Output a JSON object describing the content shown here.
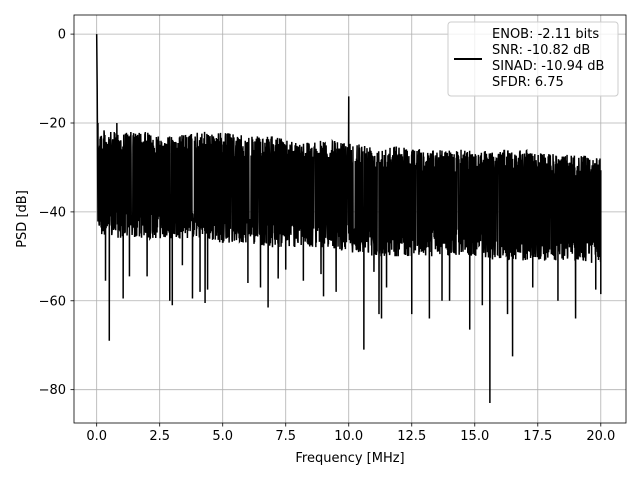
{
  "chart_data": {
    "type": "line",
    "title": "",
    "xlabel": "Frequency [MHz]",
    "ylabel": "PSD [dB]",
    "xlim": [
      -0.9,
      21.0
    ],
    "ylim": [
      -87.5,
      4.3
    ],
    "grid": true,
    "legend_position": "top-right",
    "x_ticks": [
      0.0,
      2.5,
      5.0,
      7.5,
      10.0,
      12.5,
      15.0,
      17.5,
      20.0
    ],
    "x_tick_labels": [
      "0.0",
      "2.5",
      "5.0",
      "7.5",
      "10.0",
      "12.5",
      "15.0",
      "17.5",
      "20.0"
    ],
    "y_ticks": [
      0,
      -20,
      -40,
      -60,
      -80
    ],
    "y_tick_labels": [
      "0",
      "−20",
      "−40",
      "−60",
      "−80"
    ],
    "legend": {
      "entries": [
        "ENOB: -2.11 bits",
        "SNR: -10.82 dB",
        "SINAD: -10.94 dB",
        "SFDR: 6.75"
      ]
    },
    "series": [
      {
        "color": "#000000",
        "envelope_x": [
          0.05,
          0.5,
          1.0,
          2.0,
          3.0,
          4.0,
          5.0,
          6.0,
          7.0,
          8.0,
          9.0,
          10.0,
          11.0,
          12.0,
          13.0,
          14.0,
          15.0,
          16.0,
          17.0,
          18.0,
          19.0,
          20.0
        ],
        "envelope_upper": [
          -21,
          -22,
          -22,
          -22,
          -23,
          -22,
          -22,
          -23,
          -23,
          -24,
          -24,
          -24,
          -25,
          -25,
          -26,
          -26,
          -26,
          -26,
          -26,
          -27,
          -27,
          -28
        ],
        "envelope_lower": [
          -44,
          -46,
          -46,
          -46,
          -46,
          -46,
          -47,
          -47,
          -48,
          -48,
          -48,
          -49,
          -50,
          -50,
          -50,
          -50,
          -50,
          -51,
          -51,
          -51,
          -51,
          -52
        ],
        "points": [
          [
            0.0,
            0.0
          ],
          [
            0.02,
            -12.0
          ],
          [
            0.05,
            -20.0
          ],
          [
            0.2,
            -45.0
          ],
          [
            0.35,
            -55.5
          ],
          [
            0.5,
            -69.0
          ],
          [
            0.8,
            -20.0
          ],
          [
            1.05,
            -59.5
          ],
          [
            1.3,
            -54.5
          ],
          [
            2.0,
            -54.5
          ],
          [
            2.9,
            -60.0
          ],
          [
            3.0,
            -61.0
          ],
          [
            3.4,
            -52.0
          ],
          [
            3.8,
            -59.5
          ],
          [
            4.1,
            -58.0
          ],
          [
            4.3,
            -60.5
          ],
          [
            4.4,
            -57.5
          ],
          [
            6.0,
            -56.0
          ],
          [
            6.5,
            -57.0
          ],
          [
            6.8,
            -61.5
          ],
          [
            7.2,
            -55.0
          ],
          [
            7.5,
            -53.0
          ],
          [
            8.2,
            -55.5
          ],
          [
            8.9,
            -54.0
          ],
          [
            9.0,
            -59.0
          ],
          [
            9.5,
            -58.0
          ],
          [
            10.0,
            -14.0
          ],
          [
            10.6,
            -71.0
          ],
          [
            11.0,
            -53.5
          ],
          [
            11.2,
            -63.0
          ],
          [
            11.3,
            -64.0
          ],
          [
            11.5,
            -57.0
          ],
          [
            12.5,
            -63.0
          ],
          [
            13.2,
            -64.0
          ],
          [
            13.7,
            -60.0
          ],
          [
            14.0,
            -60.0
          ],
          [
            14.8,
            -66.5
          ],
          [
            15.3,
            -61.0
          ],
          [
            15.6,
            -83.0
          ],
          [
            16.3,
            -63.0
          ],
          [
            16.5,
            -72.5
          ],
          [
            17.3,
            -57.0
          ],
          [
            18.3,
            -60.0
          ],
          [
            19.0,
            -64.0
          ],
          [
            19.8,
            -57.5
          ],
          [
            20.0,
            -58.5
          ]
        ]
      }
    ]
  }
}
